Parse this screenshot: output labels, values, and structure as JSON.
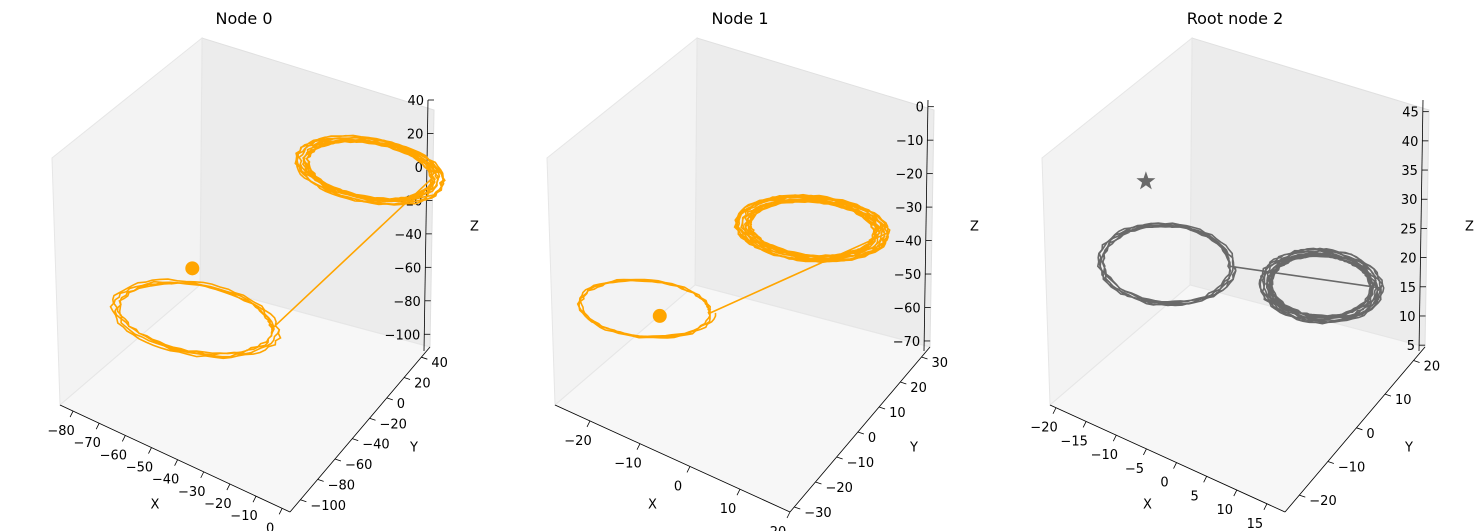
{
  "chart_data": [
    {
      "type": "line3d",
      "title": "Node 0",
      "xlabel": "X",
      "ylabel": "Y",
      "zlabel": "Z",
      "xlim": [
        -85,
        3
      ],
      "ylim": [
        -112,
        50
      ],
      "zlim": [
        -110,
        40
      ],
      "xticks": [
        -80,
        -70,
        -60,
        -50,
        -40,
        -30,
        -20,
        -10,
        0
      ],
      "yticks": [
        -100,
        -80,
        -60,
        -40,
        -20,
        0,
        20,
        40
      ],
      "zticks": [
        -100,
        -80,
        -60,
        -40,
        -20,
        0,
        20,
        40
      ],
      "color": "#ffa500",
      "marker": "circle",
      "marker_point": {
        "x": -55,
        "y": -45,
        "z": -35
      },
      "attractor": {
        "lobes": [
          {
            "center": {
              "x": -10,
              "y": 28,
              "z": 25
            },
            "radius": 28,
            "loops": 10,
            "jitter": 0.18
          },
          {
            "center": {
              "x": -52,
              "y": -52,
              "z": -60
            },
            "radius": 32,
            "loops": 4,
            "jitter": 0.12
          }
        ]
      }
    },
    {
      "type": "line3d",
      "title": "Node 1",
      "xlabel": "X",
      "ylabel": "Y",
      "zlabel": "Z",
      "xlim": [
        -27,
        20
      ],
      "ylim": [
        -32,
        34
      ],
      "zlim": [
        -73,
        2
      ],
      "xticks": [
        -20,
        -10,
        0,
        10,
        20
      ],
      "yticks": [
        -30,
        -20,
        -10,
        0,
        10,
        20,
        30
      ],
      "zticks": [
        -70,
        -60,
        -50,
        -40,
        -30,
        -20,
        -10,
        0
      ],
      "color": "#ffa500",
      "marker": "circle",
      "marker_point": {
        "x": -14,
        "y": -12,
        "z": -48
      },
      "attractor": {
        "lobes": [
          {
            "center": {
              "x": 6,
              "y": 14,
              "z": -22
            },
            "radius": 14,
            "loops": 14,
            "jitter": 0.2
          },
          {
            "center": {
              "x": -16,
              "y": -14,
              "z": -46
            },
            "radius": 13,
            "loops": 3,
            "jitter": 0.1
          }
        ]
      }
    },
    {
      "type": "line3d",
      "title": "Root node 2",
      "xlabel": "X",
      "ylabel": "Y",
      "zlabel": "Z",
      "xlim": [
        -21,
        18
      ],
      "ylim": [
        -25,
        24
      ],
      "zlim": [
        4,
        47
      ],
      "xticks": [
        -20,
        -15,
        -10,
        -5,
        0,
        5,
        10,
        15
      ],
      "yticks": [
        -20,
        -10,
        0,
        10,
        20
      ],
      "zticks": [
        5,
        10,
        15,
        20,
        25,
        30,
        35,
        40,
        45
      ],
      "color": "#696969",
      "marker": "star",
      "marker_point": {
        "x": -15,
        "y": -2,
        "z": 36
      },
      "attractor": {
        "lobes": [
          {
            "center": {
              "x": 9,
              "y": 8,
              "z": 25
            },
            "radius": 9,
            "loops": 12,
            "jitter": 0.2
          },
          {
            "center": {
              "x": -9,
              "y": -8,
              "z": 27
            },
            "radius": 10,
            "loops": 5,
            "jitter": 0.08
          }
        ]
      }
    }
  ]
}
